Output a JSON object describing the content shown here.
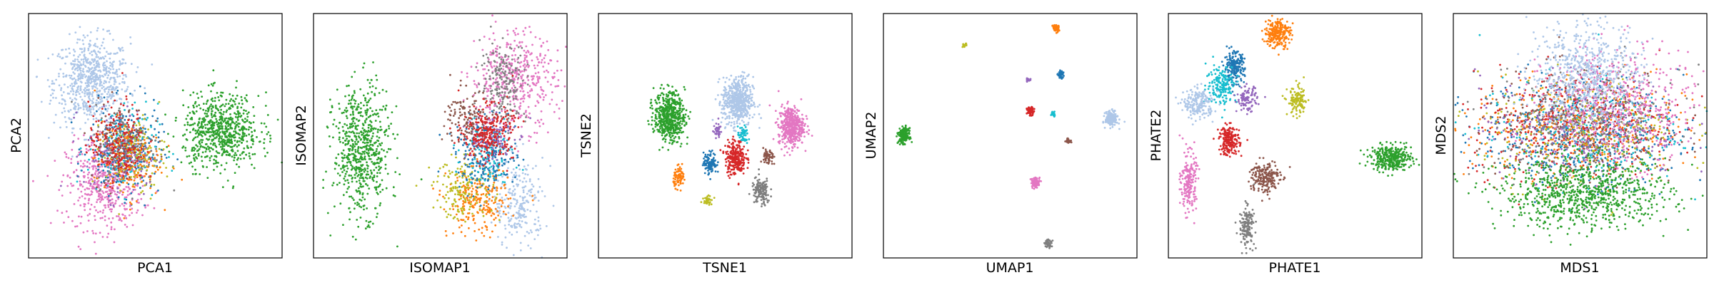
{
  "figure": {
    "description_free": true
  },
  "palette": {
    "blue": "#1f77b4",
    "orange": "#ff7f0e",
    "green": "#2ca02c",
    "red": "#d62728",
    "purple": "#9467bd",
    "brown": "#8c564b",
    "pink": "#e377c2",
    "gray": "#7f7f7f",
    "olive": "#bcbd22",
    "cyan": "#17becf",
    "lightblue": "#aec7e8"
  },
  "chart_data": [
    {
      "type": "scatter",
      "xlabel": "PCA1",
      "ylabel": "PCA2",
      "xlim": [
        0,
        10
      ],
      "ylim": [
        0,
        10
      ],
      "ticks": "hidden",
      "clusters": [
        {
          "color": "lightblue",
          "cx": 2.5,
          "cy": 7.2,
          "sx": 0.75,
          "sy": 0.9,
          "n": 700
        },
        {
          "color": "pink",
          "cx": 3.0,
          "cy": 3.0,
          "sx": 0.75,
          "sy": 0.9,
          "n": 500
        },
        {
          "color": "blue",
          "cx": 3.8,
          "cy": 4.4,
          "sx": 0.7,
          "sy": 0.9,
          "n": 250
        },
        {
          "color": "cyan",
          "cx": 3.7,
          "cy": 4.5,
          "sx": 0.7,
          "sy": 0.9,
          "n": 120
        },
        {
          "color": "purple",
          "cx": 3.6,
          "cy": 4.3,
          "sx": 0.7,
          "sy": 0.9,
          "n": 120
        },
        {
          "color": "gray",
          "cx": 3.9,
          "cy": 4.6,
          "sx": 0.65,
          "sy": 0.85,
          "n": 150
        },
        {
          "color": "brown",
          "cx": 3.6,
          "cy": 4.8,
          "sx": 0.6,
          "sy": 0.8,
          "n": 120
        },
        {
          "color": "olive",
          "cx": 4.2,
          "cy": 4.2,
          "sx": 0.6,
          "sy": 0.8,
          "n": 120
        },
        {
          "color": "orange",
          "cx": 3.9,
          "cy": 4.0,
          "sx": 0.65,
          "sy": 0.8,
          "n": 150
        },
        {
          "color": "red",
          "cx": 3.5,
          "cy": 4.7,
          "sx": 0.55,
          "sy": 0.8,
          "n": 200
        },
        {
          "color": "green",
          "cx": 7.6,
          "cy": 5.2,
          "sx": 0.75,
          "sy": 0.75,
          "n": 700
        }
      ]
    },
    {
      "type": "scatter",
      "xlabel": "ISOMAP1",
      "ylabel": "ISOMAP2",
      "xlim": [
        0,
        10
      ],
      "ylim": [
        0,
        10
      ],
      "ticks": "hidden",
      "clusters": [
        {
          "color": "green",
          "cx": 1.9,
          "cy": 4.4,
          "sx": 0.55,
          "sy": 1.3,
          "n": 650
        },
        {
          "color": "pink",
          "cx": 7.9,
          "cy": 7.3,
          "sx": 0.85,
          "sy": 1.0,
          "n": 450
        },
        {
          "color": "gray",
          "cx": 7.5,
          "cy": 7.2,
          "sx": 0.45,
          "sy": 0.8,
          "n": 200
        },
        {
          "color": "lightblue",
          "cx": 8.1,
          "cy": 2.2,
          "sx": 0.5,
          "sy": 0.9,
          "n": 250
        },
        {
          "color": "orange",
          "cx": 6.5,
          "cy": 2.3,
          "sx": 0.6,
          "sy": 0.7,
          "n": 250
        },
        {
          "color": "olive",
          "cx": 5.9,
          "cy": 2.8,
          "sx": 0.6,
          "sy": 0.6,
          "n": 150
        },
        {
          "color": "blue",
          "cx": 6.8,
          "cy": 4.2,
          "sx": 0.6,
          "sy": 0.7,
          "n": 250
        },
        {
          "color": "cyan",
          "cx": 6.9,
          "cy": 4.3,
          "sx": 0.5,
          "sy": 0.6,
          "n": 100
        },
        {
          "color": "purple",
          "cx": 6.9,
          "cy": 5.0,
          "sx": 0.5,
          "sy": 0.6,
          "n": 100
        },
        {
          "color": "brown",
          "cx": 6.1,
          "cy": 5.7,
          "sx": 0.45,
          "sy": 0.6,
          "n": 120
        },
        {
          "color": "red",
          "cx": 6.9,
          "cy": 5.1,
          "sx": 0.5,
          "sy": 0.55,
          "n": 280
        }
      ]
    },
    {
      "type": "scatter",
      "xlabel": "TSNE1",
      "ylabel": "TSNE2",
      "xlim": [
        0,
        10
      ],
      "ylim": [
        0,
        10
      ],
      "ticks": "hidden",
      "clusters": [
        {
          "color": "green",
          "cx": 2.8,
          "cy": 5.8,
          "sx": 0.3,
          "sy": 0.5,
          "n": 550
        },
        {
          "color": "lightblue",
          "cx": 5.5,
          "cy": 6.4,
          "sx": 0.3,
          "sy": 0.5,
          "n": 550
        },
        {
          "color": "pink",
          "cx": 7.6,
          "cy": 5.4,
          "sx": 0.25,
          "sy": 0.4,
          "n": 450
        },
        {
          "color": "purple",
          "cx": 4.7,
          "cy": 5.2,
          "sx": 0.08,
          "sy": 0.14,
          "n": 40
        },
        {
          "color": "cyan",
          "cx": 5.7,
          "cy": 5.0,
          "sx": 0.1,
          "sy": 0.18,
          "n": 50
        },
        {
          "color": "blue",
          "cx": 4.4,
          "cy": 3.9,
          "sx": 0.13,
          "sy": 0.22,
          "n": 120
        },
        {
          "color": "red",
          "cx": 5.4,
          "cy": 4.1,
          "sx": 0.2,
          "sy": 0.35,
          "n": 250
        },
        {
          "color": "brown",
          "cx": 6.7,
          "cy": 4.1,
          "sx": 0.1,
          "sy": 0.18,
          "n": 60
        },
        {
          "color": "orange",
          "cx": 3.2,
          "cy": 3.3,
          "sx": 0.12,
          "sy": 0.2,
          "n": 80
        },
        {
          "color": "gray",
          "cx": 6.4,
          "cy": 2.7,
          "sx": 0.18,
          "sy": 0.28,
          "n": 140
        },
        {
          "color": "olive",
          "cx": 4.3,
          "cy": 2.4,
          "sx": 0.09,
          "sy": 0.1,
          "n": 40
        }
      ]
    },
    {
      "type": "scatter",
      "xlabel": "UMAP1",
      "ylabel": "UMAP2",
      "xlim": [
        0,
        10
      ],
      "ylim": [
        0,
        10
      ],
      "ticks": "hidden",
      "clusters": [
        {
          "color": "green",
          "cx": 0.8,
          "cy": 5.0,
          "sx": 0.1,
          "sy": 0.15,
          "n": 200
        },
        {
          "color": "lightblue",
          "cx": 9.0,
          "cy": 5.7,
          "sx": 0.12,
          "sy": 0.14,
          "n": 200
        },
        {
          "color": "orange",
          "cx": 6.8,
          "cy": 9.4,
          "sx": 0.06,
          "sy": 0.08,
          "n": 60
        },
        {
          "color": "olive",
          "cx": 3.2,
          "cy": 8.7,
          "sx": 0.04,
          "sy": 0.04,
          "n": 15
        },
        {
          "color": "blue",
          "cx": 7.0,
          "cy": 7.5,
          "sx": 0.06,
          "sy": 0.07,
          "n": 50
        },
        {
          "color": "purple",
          "cx": 5.7,
          "cy": 7.3,
          "sx": 0.04,
          "sy": 0.04,
          "n": 15
        },
        {
          "color": "red",
          "cx": 5.8,
          "cy": 6.0,
          "sx": 0.07,
          "sy": 0.08,
          "n": 60
        },
        {
          "color": "cyan",
          "cx": 6.7,
          "cy": 5.9,
          "sx": 0.05,
          "sy": 0.05,
          "n": 25
        },
        {
          "color": "brown",
          "cx": 7.3,
          "cy": 4.8,
          "sx": 0.05,
          "sy": 0.05,
          "n": 25
        },
        {
          "color": "pink",
          "cx": 6.0,
          "cy": 3.1,
          "sx": 0.09,
          "sy": 0.1,
          "n": 90
        },
        {
          "color": "gray",
          "cx": 6.5,
          "cy": 0.6,
          "sx": 0.07,
          "sy": 0.08,
          "n": 60
        }
      ]
    },
    {
      "type": "scatter",
      "xlabel": "PHATE1",
      "ylabel": "PHATE2",
      "xlim": [
        0,
        10
      ],
      "ylim": [
        0,
        10
      ],
      "ticks": "hidden",
      "clusters": [
        {
          "color": "orange",
          "cx": 4.3,
          "cy": 9.2,
          "sx": 0.25,
          "sy": 0.3,
          "n": 250
        },
        {
          "color": "blue",
          "cx": 2.6,
          "cy": 7.8,
          "sx": 0.2,
          "sy": 0.3,
          "n": 200
        },
        {
          "color": "cyan",
          "cx": 2.1,
          "cy": 7.1,
          "sx": 0.3,
          "sy": 0.4,
          "n": 180
        },
        {
          "color": "lightblue",
          "cx": 1.2,
          "cy": 6.3,
          "sx": 0.3,
          "sy": 0.3,
          "n": 200
        },
        {
          "color": "purple",
          "cx": 3.1,
          "cy": 6.5,
          "sx": 0.2,
          "sy": 0.25,
          "n": 100
        },
        {
          "color": "olive",
          "cx": 5.1,
          "cy": 6.4,
          "sx": 0.2,
          "sy": 0.3,
          "n": 120
        },
        {
          "color": "red",
          "cx": 2.4,
          "cy": 4.8,
          "sx": 0.2,
          "sy": 0.3,
          "n": 200
        },
        {
          "color": "green",
          "cx": 8.8,
          "cy": 4.1,
          "sx": 0.4,
          "sy": 0.25,
          "n": 350
        },
        {
          "color": "brown",
          "cx": 3.8,
          "cy": 3.3,
          "sx": 0.3,
          "sy": 0.35,
          "n": 200
        },
        {
          "color": "pink",
          "cx": 0.8,
          "cy": 3.1,
          "sx": 0.15,
          "sy": 0.6,
          "n": 200
        },
        {
          "color": "gray",
          "cx": 3.1,
          "cy": 1.3,
          "sx": 0.15,
          "sy": 0.4,
          "n": 150
        }
      ]
    },
    {
      "type": "scatter",
      "xlabel": "MDS1",
      "ylabel": "MDS2",
      "xlim": [
        0,
        10
      ],
      "ylim": [
        0,
        10
      ],
      "ticks": "hidden",
      "clusters": [
        {
          "color": "blue",
          "cx": 5.0,
          "cy": 5.1,
          "sx": 2.0,
          "sy": 1.1,
          "n": 500
        },
        {
          "color": "orange",
          "cx": 5.0,
          "cy": 5.3,
          "sx": 2.1,
          "sy": 1.1,
          "n": 400
        },
        {
          "color": "red",
          "cx": 4.8,
          "cy": 5.5,
          "sx": 2.1,
          "sy": 1.1,
          "n": 400
        },
        {
          "color": "cyan",
          "cx": 5.0,
          "cy": 5.2,
          "sx": 2.0,
          "sy": 1.1,
          "n": 250
        },
        {
          "color": "purple",
          "cx": 5.0,
          "cy": 5.4,
          "sx": 2.0,
          "sy": 1.1,
          "n": 250
        },
        {
          "color": "olive",
          "cx": 5.0,
          "cy": 5.2,
          "sx": 2.0,
          "sy": 1.1,
          "n": 250
        },
        {
          "color": "brown",
          "cx": 5.0,
          "cy": 5.4,
          "sx": 2.0,
          "sy": 1.1,
          "n": 250
        },
        {
          "color": "gray",
          "cx": 5.2,
          "cy": 5.6,
          "sx": 1.9,
          "sy": 1.1,
          "n": 250
        },
        {
          "color": "pink",
          "cx": 6.6,
          "cy": 6.2,
          "sx": 1.5,
          "sy": 1.2,
          "n": 500
        },
        {
          "color": "lightblue",
          "cx": 5.2,
          "cy": 7.5,
          "sx": 1.1,
          "sy": 1.1,
          "n": 650
        },
        {
          "color": "green",
          "cx": 5.2,
          "cy": 2.6,
          "sx": 1.7,
          "sy": 0.7,
          "n": 850
        }
      ]
    }
  ]
}
